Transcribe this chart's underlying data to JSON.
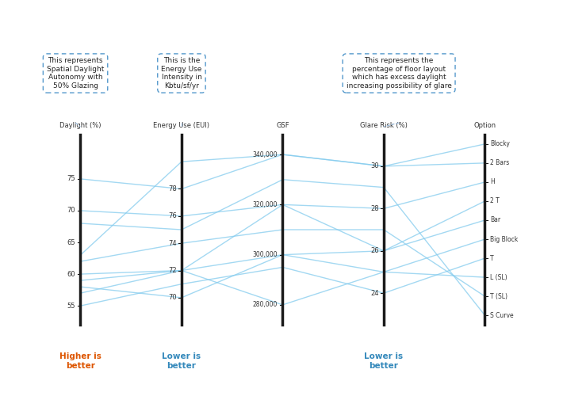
{
  "axes": [
    "Daylight (%)",
    "Energy Use (EUI)",
    "GSF",
    "Glare Risk (%)",
    "Option"
  ],
  "daylight_range": [
    52,
    82
  ],
  "daylight_ticks": [
    55,
    60,
    65,
    70,
    75
  ],
  "eui_range": [
    68,
    82
  ],
  "eui_ticks": [
    70,
    72,
    74,
    76,
    78
  ],
  "gsf_range": [
    272000,
    348000
  ],
  "gsf_ticks": [
    280000,
    300000,
    320000,
    340000
  ],
  "glare_range": [
    22.5,
    31.5
  ],
  "glare_ticks": [
    24,
    26,
    28,
    30
  ],
  "option_labels": [
    "Blocky",
    "2 Bars",
    "H",
    "2 T",
    "Bar",
    "Big Block",
    "T",
    "L (SL)",
    "T (SL)",
    "S Curve"
  ],
  "option_values": [
    10,
    9,
    8,
    7,
    6,
    5,
    4,
    3,
    2,
    1
  ],
  "line_color": "#85CCEE",
  "line_alpha": 0.75,
  "line_width": 1.0,
  "axis_color": "#1a1a1a",
  "background_color": "#ffffff",
  "chart_bg": "#f0f0ea",
  "annotation1_text": "This represents\nSpatial Daylight\nAutonomy with\n50% Glazing",
  "annotation2_text": "This is the\nEnergy Use\nIntensity in\nKbtu/sf/yr",
  "annotation3_text": "This represents the\npercentage of floor layout\nwhich has excess daylight\nincreasing possibility of glare",
  "better_higher_color": "#DD5500",
  "better_lower_color": "#3388BB",
  "data": [
    {
      "daylight": 75,
      "eui": 78,
      "gsf": 340000,
      "glare": 30,
      "option": 10
    },
    {
      "daylight": 63,
      "eui": 80,
      "gsf": 340000,
      "glare": 30,
      "option": 9
    },
    {
      "daylight": 70,
      "eui": 76,
      "gsf": 320000,
      "glare": 28,
      "option": 8
    },
    {
      "daylight": 60,
      "eui": 72,
      "gsf": 320000,
      "glare": 26,
      "option": 7
    },
    {
      "daylight": 57,
      "eui": 72,
      "gsf": 300000,
      "glare": 26,
      "option": 6
    },
    {
      "daylight": 58,
      "eui": 70,
      "gsf": 300000,
      "glare": 25,
      "option": 5
    },
    {
      "daylight": 55,
      "eui": 71,
      "gsf": 295000,
      "glare": 24,
      "option": 4
    },
    {
      "daylight": 59,
      "eui": 72,
      "gsf": 280000,
      "glare": 25,
      "option": 3
    },
    {
      "daylight": 62,
      "eui": 74,
      "gsf": 310000,
      "glare": 27,
      "option": 2
    },
    {
      "daylight": 68,
      "eui": 75,
      "gsf": 330000,
      "glare": 29,
      "option": 1
    }
  ]
}
